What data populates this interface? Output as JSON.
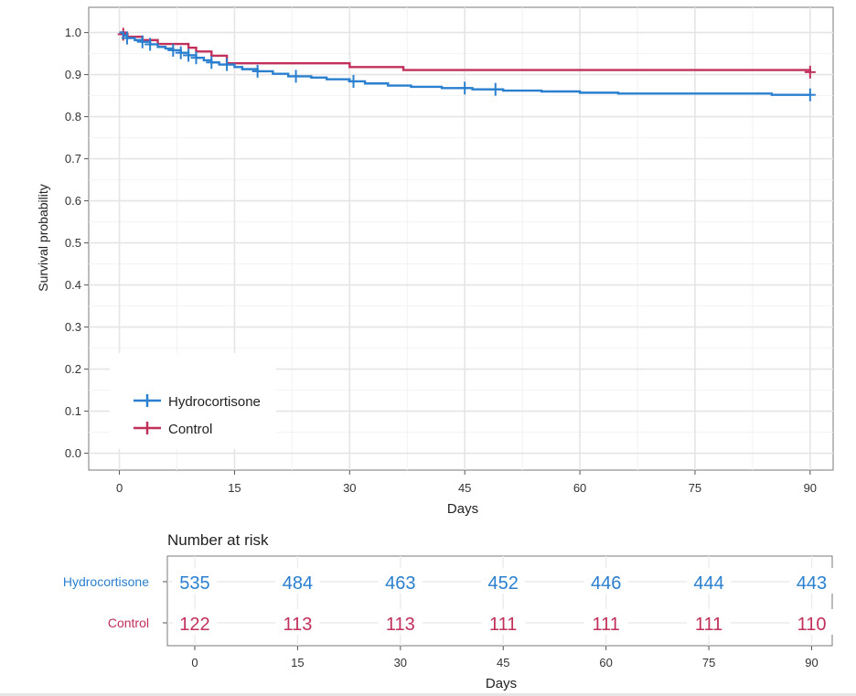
{
  "chart_data": {
    "type": "line",
    "subtype": "kaplan-meier survival curve",
    "xlabel": "Days",
    "ylabel": "Survival probability",
    "xlim": [
      -4,
      93
    ],
    "ylim": [
      -0.04,
      1.06
    ],
    "xticks": [
      0,
      15,
      30,
      45,
      60,
      75,
      90
    ],
    "xtick_labels": [
      "0",
      "15",
      "30",
      "45",
      "60",
      "75",
      "90"
    ],
    "yticks": [
      0.0,
      0.1,
      0.2,
      0.3,
      0.4,
      0.5,
      0.6,
      0.7,
      0.8,
      0.9,
      1.0
    ],
    "ytick_labels": [
      "0.0",
      "0.1",
      "0.2",
      "0.3",
      "0.4",
      "0.5",
      "0.6",
      "0.7",
      "0.8",
      "0.9",
      "1.0"
    ],
    "grid": true,
    "legend_position": "bottom-left",
    "series": [
      {
        "name": "Hydrocortisone",
        "color": "#2a7fcf",
        "steps": [
          [
            0,
            1.0
          ],
          [
            0.5,
            0.993
          ],
          [
            1,
            0.987
          ],
          [
            2,
            0.982
          ],
          [
            3,
            0.978
          ],
          [
            4,
            0.972
          ],
          [
            5,
            0.966
          ],
          [
            6,
            0.962
          ],
          [
            7,
            0.958
          ],
          [
            8,
            0.952
          ],
          [
            9,
            0.946
          ],
          [
            10,
            0.94
          ],
          [
            11,
            0.934
          ],
          [
            12,
            0.929
          ],
          [
            13,
            0.924
          ],
          [
            15,
            0.918
          ],
          [
            16,
            0.913
          ],
          [
            18,
            0.908
          ],
          [
            20,
            0.902
          ],
          [
            22,
            0.896
          ],
          [
            25,
            0.893
          ],
          [
            27,
            0.889
          ],
          [
            30,
            0.884
          ],
          [
            32,
            0.879
          ],
          [
            35,
            0.874
          ],
          [
            38,
            0.871
          ],
          [
            42,
            0.868
          ],
          [
            46,
            0.865
          ],
          [
            50,
            0.862
          ],
          [
            55,
            0.86
          ],
          [
            60,
            0.857
          ],
          [
            65,
            0.855
          ],
          [
            75,
            0.855
          ],
          [
            85,
            0.852
          ],
          [
            90,
            0.852
          ]
        ],
        "censor_marks": [
          [
            1,
            0.987
          ],
          [
            3,
            0.978
          ],
          [
            4,
            0.972
          ],
          [
            7,
            0.958
          ],
          [
            8,
            0.952
          ],
          [
            9,
            0.946
          ],
          [
            10,
            0.94
          ],
          [
            12,
            0.929
          ],
          [
            14,
            0.924
          ],
          [
            18,
            0.908
          ],
          [
            23,
            0.896
          ],
          [
            30.5,
            0.884
          ],
          [
            45,
            0.868
          ],
          [
            49,
            0.865
          ],
          [
            90,
            0.852
          ]
        ]
      },
      {
        "name": "Control",
        "color": "#c0305a",
        "steps": [
          [
            0,
            1.0
          ],
          [
            1,
            0.99
          ],
          [
            3,
            0.982
          ],
          [
            5,
            0.973
          ],
          [
            9,
            0.964
          ],
          [
            10,
            0.955
          ],
          [
            12,
            0.945
          ],
          [
            14,
            0.927
          ],
          [
            30,
            0.918
          ],
          [
            37,
            0.911
          ],
          [
            90,
            0.906
          ]
        ],
        "censor_marks": [
          [
            0.5,
            0.996
          ],
          [
            90,
            0.906
          ]
        ]
      }
    ]
  },
  "risk_table": {
    "title": "Number at risk",
    "xlabel": "Days",
    "times": [
      "0",
      "15",
      "30",
      "45",
      "60",
      "75",
      "90"
    ],
    "rows": [
      {
        "name": "Hydrocortisone",
        "color": "#2a7fcf",
        "counts": [
          "535",
          "484",
          "463",
          "452",
          "446",
          "444",
          "443"
        ]
      },
      {
        "name": "Control",
        "color": "#c0305a",
        "counts": [
          "122",
          "113",
          "113",
          "111",
          "111",
          "111",
          "110"
        ]
      }
    ]
  }
}
